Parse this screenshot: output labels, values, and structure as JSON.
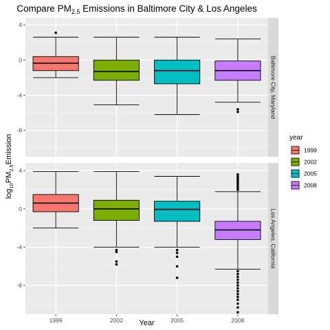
{
  "chart_data": {
    "type": "box",
    "title": {
      "prefix": "Compare PM",
      "subscript": "2.5",
      "suffix": " Emissions in Baltimore City & Los Angeles"
    },
    "xlabel": "Year",
    "ylabel": {
      "prefix": "log",
      "subscript": "10",
      "middle": "PM",
      "subscript2": "2.5",
      "suffix": "Emission"
    },
    "categories": [
      "1999",
      "2002",
      "2005",
      "2008"
    ],
    "ylim": [
      -11,
      4.8
    ],
    "yticks": [
      4,
      0,
      -4,
      -8
    ],
    "ytick_labels": [
      "4",
      "0",
      "-4",
      "-8"
    ],
    "legend": {
      "title": "year",
      "position": "right",
      "items": [
        {
          "label": "1999",
          "color": "#F8766D"
        },
        {
          "label": "2002",
          "color": "#7CAE00"
        },
        {
          "label": "2005",
          "color": "#00BFC4"
        },
        {
          "label": "2008",
          "color": "#C77CFF"
        }
      ]
    },
    "grid": true,
    "panels": [
      {
        "strip_label": "Baltimore City, Maryland",
        "boxes": [
          {
            "category": "1999",
            "whisker_low": -2.0,
            "q1": -1.2,
            "median": -0.35,
            "q3": 0.4,
            "whisker_high": 2.6,
            "outliers": [
              3.1
            ]
          },
          {
            "category": "2002",
            "whisker_low": -5.1,
            "q1": -2.3,
            "median": -1.3,
            "q3": 0.0,
            "whisker_high": 2.6,
            "outliers": []
          },
          {
            "category": "2005",
            "whisker_low": -6.2,
            "q1": -2.7,
            "median": -1.2,
            "q3": 0.0,
            "whisker_high": 2.6,
            "outliers": []
          },
          {
            "category": "2008",
            "whisker_low": -4.8,
            "q1": -2.3,
            "median": -1.2,
            "q3": -0.1,
            "whisker_high": 2.4,
            "outliers": [
              -5.6,
              -5.9
            ]
          }
        ]
      },
      {
        "strip_label": "Los Angeles, California",
        "boxes": [
          {
            "category": "1999",
            "whisker_low": -2.0,
            "q1": -0.3,
            "median": 0.6,
            "q3": 1.5,
            "whisker_high": 3.9,
            "outliers": []
          },
          {
            "category": "2002",
            "whisker_low": -4.0,
            "q1": -1.2,
            "median": 0.0,
            "q3": 0.9,
            "whisker_high": 3.9,
            "outliers": [
              -4.3,
              -4.5,
              -5.5,
              -5.8
            ]
          },
          {
            "category": "2005",
            "whisker_low": -4.0,
            "q1": -1.3,
            "median": -0.05,
            "q3": 0.8,
            "whisker_high": 3.4,
            "outliers": [
              -4.3,
              -4.6,
              -5.0,
              -6.0,
              -7.2
            ]
          },
          {
            "category": "2008",
            "whisker_low": -6.3,
            "q1": -3.2,
            "median": -2.2,
            "q3": -1.3,
            "whisker_high": 1.8,
            "outliers": [
              2.0,
              2.2,
              2.4,
              2.6,
              2.8,
              3.0,
              3.2,
              3.4,
              3.6,
              -6.5,
              -6.8,
              -7.1,
              -7.4,
              -7.7,
              -8.0,
              -8.3,
              -8.6,
              -8.9,
              -9.2,
              -9.5,
              -9.9,
              -10.3,
              -10.8
            ]
          }
        ]
      }
    ]
  }
}
